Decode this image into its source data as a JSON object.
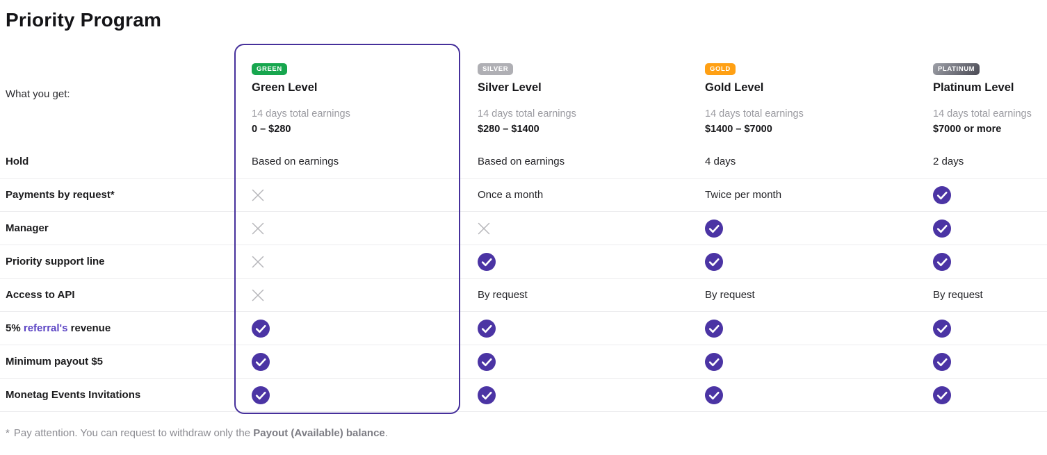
{
  "page": {
    "title": "Priority Program"
  },
  "table": {
    "whats_label": "What you get:",
    "tiers": [
      {
        "badge": "GREEN",
        "badge_color": "#17a64e",
        "name": "Green Level",
        "earnings_label": "14 days total earnings",
        "earnings_range": "0 – $280",
        "highlighted": true
      },
      {
        "badge": "SILVER",
        "badge_color": "#afafb4",
        "name": "Silver Level",
        "earnings_label": "14 days total earnings",
        "earnings_range": "$280 – $1400",
        "highlighted": false
      },
      {
        "badge": "GOLD",
        "badge_color": "#ffa014",
        "name": "Gold Level",
        "earnings_label": "14 days total earnings",
        "earnings_range": "$1400 – $7000",
        "highlighted": false
      },
      {
        "badge": "PLATINUM",
        "badge_color": "linear-gradient(135deg,#9ea0a8,#4a4a54)",
        "name": "Platinum Level",
        "earnings_label": "14 days total earnings",
        "earnings_range": "$7000 or more",
        "highlighted": false
      }
    ],
    "rows": [
      {
        "label": "Hold",
        "cells": [
          {
            "text": "Based on earnings"
          },
          {
            "text": "Based on earnings"
          },
          {
            "text": "4 days"
          },
          {
            "text": "2 days"
          }
        ]
      },
      {
        "label": "Payments by request*",
        "cells": [
          {
            "icon": "cross"
          },
          {
            "text": "Once a month"
          },
          {
            "text": "Twice per month"
          },
          {
            "icon": "check"
          }
        ]
      },
      {
        "label": "Manager",
        "cells": [
          {
            "icon": "cross"
          },
          {
            "icon": "cross"
          },
          {
            "icon": "check"
          },
          {
            "icon": "check"
          }
        ]
      },
      {
        "label": "Priority support line",
        "cells": [
          {
            "icon": "cross"
          },
          {
            "icon": "check"
          },
          {
            "icon": "check"
          },
          {
            "icon": "check"
          }
        ]
      },
      {
        "label": "Access to API",
        "cells": [
          {
            "icon": "cross"
          },
          {
            "text": "By request"
          },
          {
            "text": "By request"
          },
          {
            "text": "By request"
          }
        ]
      },
      {
        "label_parts": {
          "prefix": "5% ",
          "link": "referral's",
          "suffix": " revenue"
        },
        "cells": [
          {
            "icon": "check"
          },
          {
            "icon": "check"
          },
          {
            "icon": "check"
          },
          {
            "icon": "check"
          }
        ]
      },
      {
        "label": "Minimum payout $5",
        "cells": [
          {
            "icon": "check"
          },
          {
            "icon": "check"
          },
          {
            "icon": "check"
          },
          {
            "icon": "check"
          }
        ]
      },
      {
        "label": "Monetag Events Invitations",
        "cells": [
          {
            "icon": "check"
          },
          {
            "icon": "check"
          },
          {
            "icon": "check"
          },
          {
            "icon": "check"
          }
        ]
      }
    ]
  },
  "footnote": {
    "marker": "*",
    "text": "Pay attention. You can request to withdraw only the ",
    "bold": "Payout (Available) balance",
    "suffix": "."
  },
  "colors": {
    "accent_purple": "#46309b",
    "check_purple": "#4b34a4",
    "link_purple": "#5b44c4",
    "cross_gray": "#b6b6ba",
    "divider": "#ececee"
  }
}
